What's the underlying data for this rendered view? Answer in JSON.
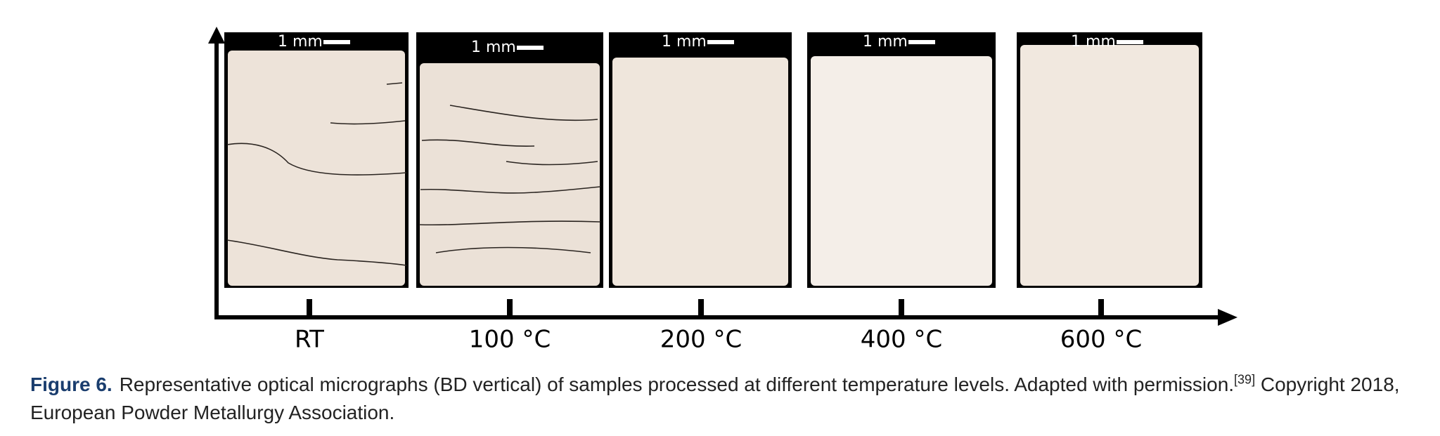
{
  "figure": {
    "panels": [
      {
        "scale_label": "1 mm",
        "label": "RT"
      },
      {
        "scale_label": "1 mm",
        "label": "100 °C"
      },
      {
        "scale_label": "1 mm",
        "label": "200 °C"
      },
      {
        "scale_label": "1 mm",
        "label": "400 °C"
      },
      {
        "scale_label": "1 mm",
        "label": "600 °C"
      }
    ],
    "caption": {
      "label": "Figure 6.",
      "text": "Representative optical micrographs (BD vertical) of samples processed at different temperature levels. Adapted with permission.",
      "reference": "[39]",
      "text_after": "Copyright 2018, European Powder Metallurgy Association."
    }
  }
}
